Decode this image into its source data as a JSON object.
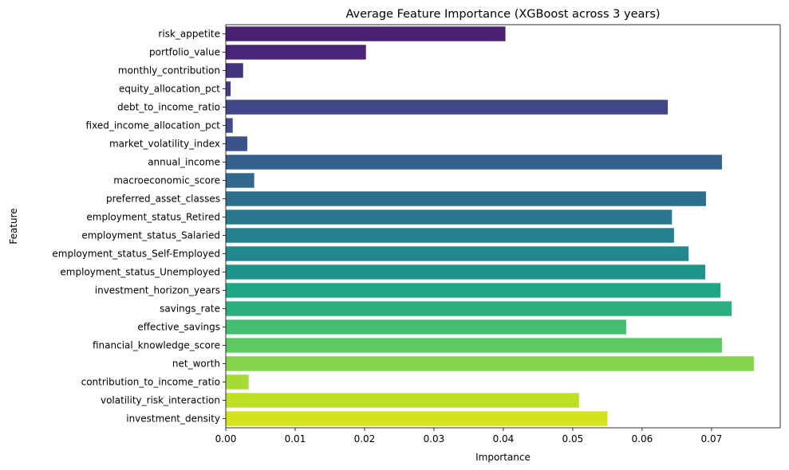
{
  "chart_data": {
    "type": "bar",
    "orientation": "horizontal",
    "title": "Average Feature Importance (XGBoost across 3 years)",
    "xlabel": "Importance",
    "ylabel": "Feature",
    "xlim": [
      0,
      0.0799
    ],
    "xticks": [
      "0.00",
      "0.01",
      "0.02",
      "0.03",
      "0.04",
      "0.05",
      "0.06",
      "0.07"
    ],
    "grid": false,
    "legend": "none",
    "palette": "viridis",
    "categories": [
      "risk_appetite",
      "portfolio_value",
      "monthly_contribution",
      "equity_allocation_pct",
      "debt_to_income_ratio",
      "fixed_income_allocation_pct",
      "market_volatility_index",
      "annual_income",
      "macroeconomic_score",
      "preferred_asset_classes",
      "employment_status_Retired",
      "employment_status_Salaried",
      "employment_status_Self-Employed",
      "employment_status_Unemployed",
      "investment_horizon_years",
      "savings_rate",
      "effective_savings",
      "financial_knowledge_score",
      "net_worth",
      "contribution_to_income_ratio",
      "volatility_risk_interaction",
      "investment_density"
    ],
    "values": [
      0.0403,
      0.0202,
      0.0025,
      0.0007,
      0.0637,
      0.001,
      0.0031,
      0.0715,
      0.0041,
      0.0692,
      0.0643,
      0.0646,
      0.0667,
      0.0691,
      0.0713,
      0.0729,
      0.0577,
      0.0715,
      0.0761,
      0.0033,
      0.0509,
      0.055
    ],
    "colors": [
      "#482173",
      "#482576",
      "#46337e",
      "#443b84",
      "#404688",
      "#3e4c8a",
      "#3b528b",
      "#355f8d",
      "#31688e",
      "#2e6f8e",
      "#2a788e",
      "#26818e",
      "#23888e",
      "#1f948c",
      "#21a685",
      "#2ab07f",
      "#44bf70",
      "#5ec962",
      "#84d44b",
      "#a5db36",
      "#bddf26",
      "#d2e21b"
    ]
  }
}
